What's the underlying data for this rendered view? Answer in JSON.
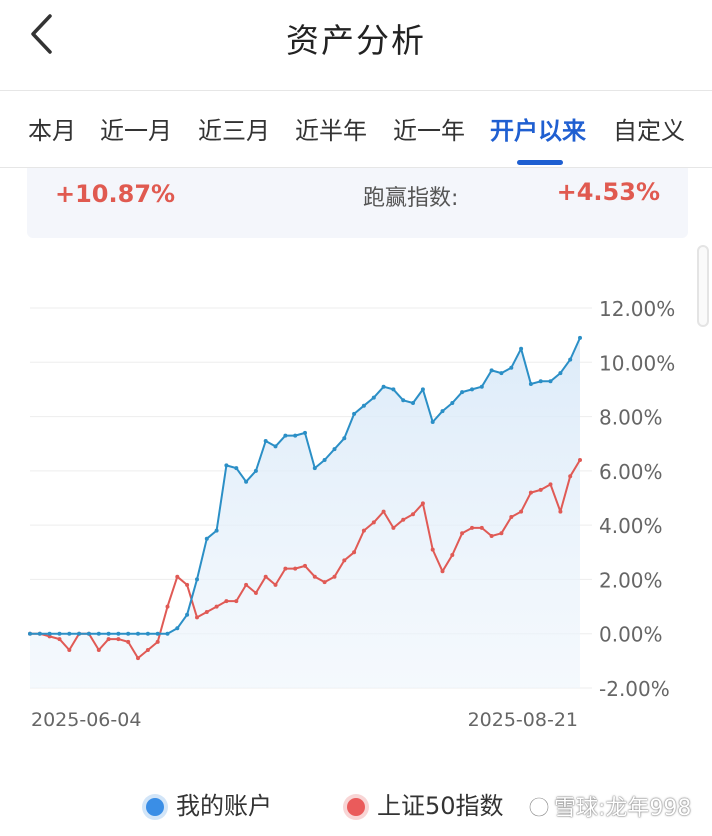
{
  "header": {
    "title": "资产分析"
  },
  "tabs": [
    {
      "label": "本月",
      "active": false
    },
    {
      "label": "近一月",
      "active": false
    },
    {
      "label": "近三月",
      "active": false
    },
    {
      "label": "近半年",
      "active": false
    },
    {
      "label": "近一年",
      "active": false
    },
    {
      "label": "开户以来",
      "active": true
    },
    {
      "label": "自定义",
      "active": false
    }
  ],
  "summary": {
    "account_return": "+10.87%",
    "beat_label": "跑赢指数:",
    "beat_value": "+4.53%"
  },
  "colors": {
    "accent": "#1f5fd1",
    "account_line": "#2b8fc6",
    "index_line": "#e05a55",
    "positive": "#e05a50"
  },
  "chart_data": {
    "type": "line",
    "x_tick_labels": [
      "2025-06-04",
      "2025-08-21"
    ],
    "y_ticks": [
      "12.00%",
      "10.00%",
      "8.00%",
      "6.00%",
      "4.00%",
      "2.00%",
      "0.00%",
      "-2.00%"
    ],
    "ylim": [
      -2,
      12
    ],
    "series": [
      {
        "name": "我的账户",
        "values": [
          0,
          0,
          0,
          0,
          0,
          0,
          0,
          0,
          0,
          0,
          0,
          0,
          0,
          0,
          0,
          0.2,
          0.7,
          2,
          3.5,
          3.8,
          6.2,
          6.1,
          5.6,
          6,
          7.1,
          6.9,
          7.3,
          7.3,
          7.4,
          6.1,
          6.4,
          6.8,
          7.2,
          8.1,
          8.4,
          8.7,
          9.1,
          9,
          8.6,
          8.5,
          9,
          7.8,
          8.2,
          8.5,
          8.9,
          9,
          9.1,
          9.7,
          9.6,
          9.8,
          10.5,
          9.2,
          9.3,
          9.3,
          9.6,
          10.1,
          10.9
        ]
      },
      {
        "name": "上证50指数",
        "values": [
          0,
          0,
          -0.1,
          -0.2,
          -0.6,
          0,
          0,
          -0.6,
          -0.2,
          -0.2,
          -0.3,
          -0.9,
          -0.6,
          -0.3,
          1,
          2.1,
          1.8,
          0.6,
          0.8,
          1,
          1.2,
          1.2,
          1.8,
          1.5,
          2.1,
          1.8,
          2.4,
          2.4,
          2.5,
          2.1,
          1.9,
          2.1,
          2.7,
          3,
          3.8,
          4.1,
          4.5,
          3.9,
          4.2,
          4.4,
          4.8,
          3.1,
          2.3,
          2.9,
          3.7,
          3.9,
          3.9,
          3.6,
          3.7,
          4.3,
          4.5,
          5.2,
          5.3,
          5.5,
          4.5,
          5.8,
          6.4
        ]
      }
    ]
  },
  "legend": [
    {
      "label": "我的账户",
      "color": "#3a8ee6"
    },
    {
      "label": "上证50指数",
      "color": "#ea5b5b"
    }
  ],
  "watermark": "雪球:龙年998"
}
